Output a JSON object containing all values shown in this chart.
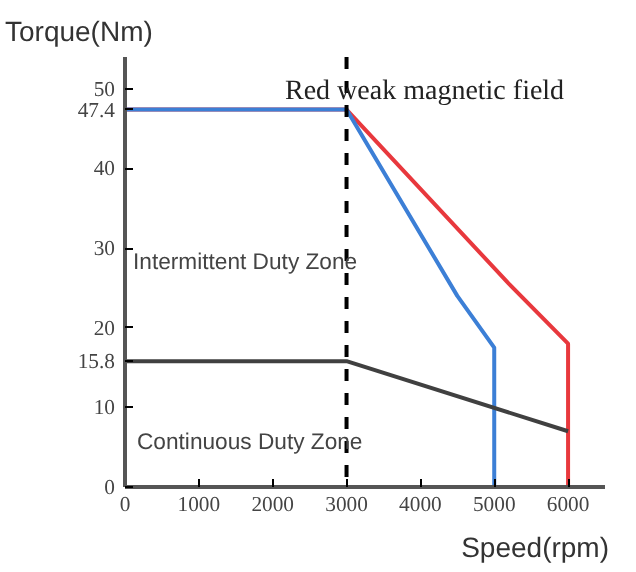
{
  "chart_data": {
    "type": "line",
    "xlabel": "Speed(rpm)",
    "ylabel": "Torque(Nm)",
    "annotations": [
      "Red weak magnetic field",
      "Intermittent Duty Zone",
      "Continuous Duty Zone"
    ],
    "series": [
      {
        "color": "#e8383d",
        "x": [
          0,
          3000,
          5200,
          6000,
          6000
        ],
        "values": [
          47.4,
          47.4,
          25.5,
          18,
          0
        ]
      },
      {
        "color": "#3c7fd6",
        "x": [
          0,
          3000,
          4500,
          5000,
          5000
        ],
        "values": [
          47.4,
          47.4,
          24,
          17.5,
          0
        ]
      },
      {
        "color": "#404040",
        "x": [
          0,
          3000,
          6000
        ],
        "values": [
          15.8,
          15.8,
          7
        ]
      }
    ],
    "ref_lines": [
      {
        "axis": "x",
        "value": 3000,
        "color": "#000000",
        "line_style": "dashed"
      }
    ],
    "xlim": [
      0,
      6500
    ],
    "ylim": [
      0,
      54
    ],
    "xticks": [
      0,
      1000,
      2000,
      3000,
      4000,
      5000,
      6000
    ],
    "yticks": [
      0,
      10,
      15.8,
      20,
      30,
      40,
      47.4,
      50
    ],
    "grid": false,
    "marker": "none",
    "line_style": "solid"
  }
}
